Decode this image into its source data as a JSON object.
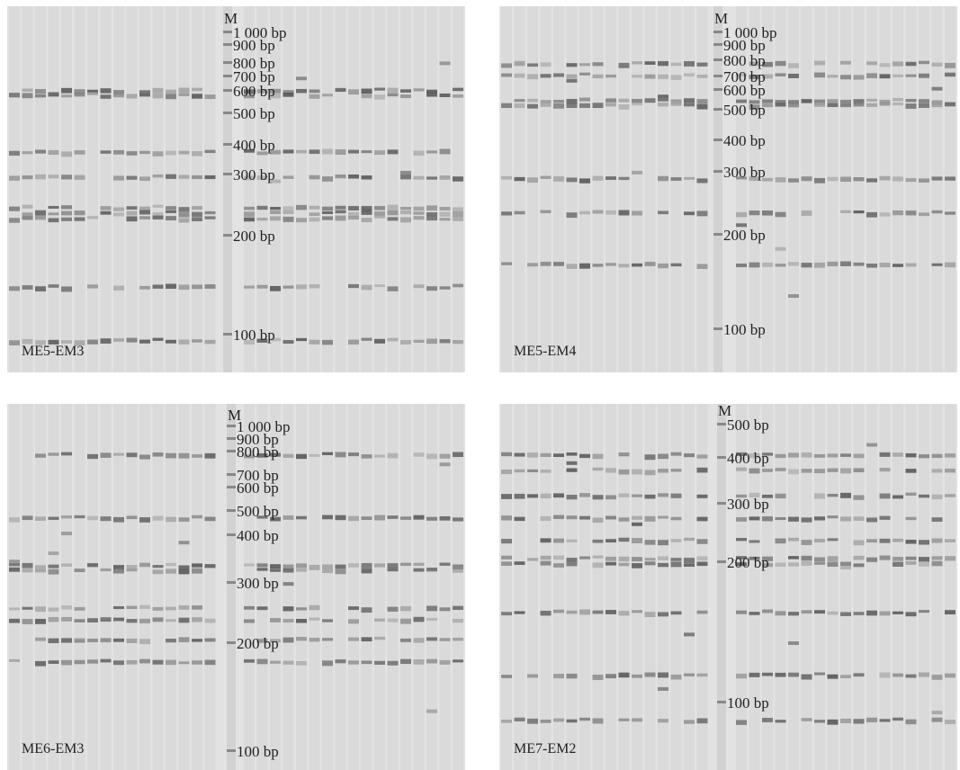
{
  "panels": [
    {
      "label": "ME5-EM3",
      "marker": "M",
      "ladder": [
        "1 000 bp",
        "900 bp",
        "800 bp",
        "700 bp",
        "600 bp",
        "500 bp",
        "400 bp",
        "300 bp",
        "200 bp",
        "100 bp"
      ]
    },
    {
      "label": "ME5-EM4",
      "marker": "M",
      "ladder": [
        "1 000 bp",
        "900 bp",
        "800 bp",
        "700 bp",
        "600 bp",
        "500 bp",
        "400 bp",
        "300 bp",
        "200 bp",
        "100 bp"
      ]
    },
    {
      "label": "ME6-EM3",
      "marker": "M",
      "ladder": [
        "1 000 bp",
        "900 bp",
        "800 bp",
        "700 bp",
        "600 bp",
        "500 bp",
        "400 bp",
        "300 bp",
        "200 bp",
        "100 bp"
      ]
    },
    {
      "label": "ME7-EM2",
      "marker": "M",
      "ladder": [
        "500 bp",
        "400 bp",
        "300 bp",
        "200 bp",
        "100 bp"
      ]
    }
  ]
}
